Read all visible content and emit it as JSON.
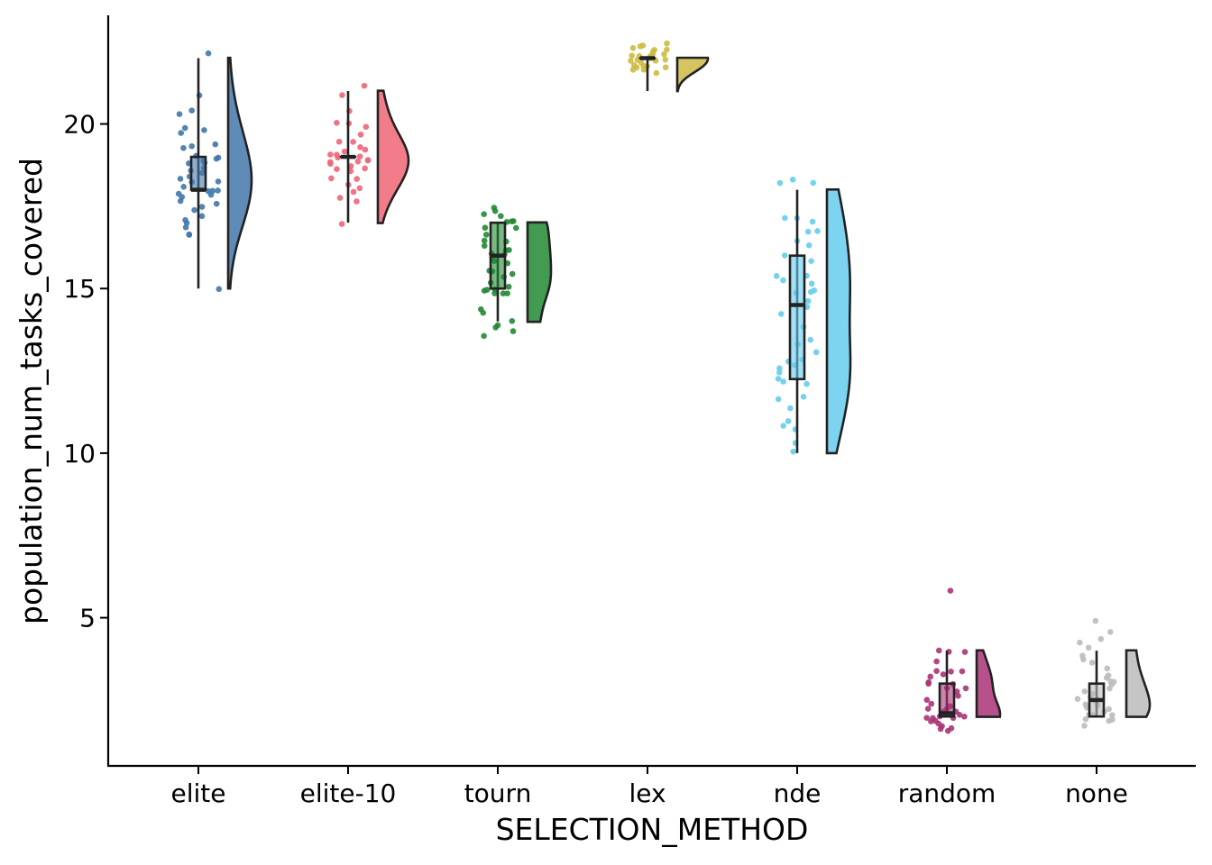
{
  "chart_data": {
    "type": "raincloud",
    "xlabel": "SELECTION_METHOD",
    "ylabel": "population_num_tasks_covered",
    "ylim": [
      0.5,
      23.3
    ],
    "yticks": [
      5,
      10,
      15,
      20
    ],
    "grid": false,
    "legend": "none",
    "groups": [
      {
        "name": "elite",
        "color": "#4477AA",
        "min": 15,
        "q1": 18,
        "median": 18,
        "q3": 19,
        "max": 22,
        "points": [
          22.1,
          20.8,
          20.4,
          20.3,
          19.9,
          19.8,
          19.7,
          19.4,
          19.3,
          19.2,
          19.1,
          19.0,
          18.9,
          18.9,
          18.8,
          18.8,
          18.7,
          18.6,
          18.5,
          18.4,
          18.3,
          18.3,
          18.2,
          18.1,
          18.0,
          18.0,
          17.9,
          17.9,
          17.8,
          17.8,
          17.7,
          17.6,
          17.5,
          17.4,
          17.2,
          17.1,
          17.0,
          16.9,
          16.7,
          16.6,
          15.0
        ]
      },
      {
        "name": "elite-10",
        "color": "#EE6677",
        "min": 17,
        "q1": 19,
        "median": 19,
        "q3": 19,
        "max": 21,
        "points": [
          21.1,
          20.9,
          20.4,
          20.1,
          20.0,
          19.9,
          19.7,
          19.5,
          19.4,
          19.3,
          19.2,
          19.1,
          19.1,
          19.0,
          19.0,
          19.0,
          18.9,
          18.9,
          18.9,
          18.8,
          18.8,
          18.7,
          18.7,
          18.6,
          18.5,
          18.4,
          18.3,
          18.1,
          18.0,
          17.9,
          17.8,
          17.7,
          16.95
        ]
      },
      {
        "name": "tourn",
        "color": "#228833",
        "min": 14,
        "q1": 15,
        "median": 16,
        "q3": 17,
        "max": 17,
        "points": [
          17.4,
          17.3,
          17.3,
          17.2,
          17.1,
          17.0,
          17.0,
          16.9,
          16.8,
          16.6,
          16.5,
          16.4,
          16.3,
          16.2,
          16.1,
          16.0,
          16.0,
          15.9,
          15.8,
          15.7,
          15.6,
          15.5,
          15.4,
          15.3,
          15.2,
          15.1,
          15.0,
          15.0,
          14.9,
          14.9,
          14.8,
          14.8,
          14.3,
          14.2,
          14.0,
          13.85,
          13.75,
          13.65,
          13.6
        ]
      },
      {
        "name": "lex",
        "color": "#CCBB44",
        "min": 21,
        "q1": 22,
        "median": 22,
        "q3": 22,
        "max": 22,
        "points": [
          22.4,
          22.35,
          22.3,
          22.3,
          22.25,
          22.2,
          22.2,
          22.15,
          22.1,
          22.1,
          22.05,
          22.0,
          22.0,
          22.0,
          21.95,
          21.9,
          21.9,
          21.85,
          21.8,
          21.8,
          21.75,
          21.7,
          21.7,
          21.65,
          21.6,
          21.6
        ]
      },
      {
        "name": "nde",
        "color": "#66CCEE",
        "min": 10,
        "q1": 12.25,
        "median": 14.5,
        "q3": 16,
        "max": 18,
        "points": [
          18.35,
          18.25,
          18.2,
          17.2,
          17.1,
          17.0,
          16.8,
          16.75,
          16.5,
          16.3,
          16.0,
          15.8,
          15.4,
          15.35,
          15.3,
          15.1,
          15.0,
          14.9,
          14.8,
          14.6,
          14.4,
          14.2,
          13.8,
          13.5,
          13.3,
          13.0,
          12.8,
          12.75,
          12.7,
          12.6,
          12.5,
          12.3,
          12.2,
          12.1,
          11.7,
          11.6,
          11.3,
          11.0,
          10.8,
          10.7,
          10.3,
          10.05
        ]
      },
      {
        "name": "random",
        "color": "#AA3377",
        "min": 2,
        "q1": 2,
        "median": 2.1,
        "q3": 3,
        "max": 4,
        "points": [
          5.8,
          4.0,
          3.9,
          3.9,
          3.7,
          3.4,
          3.35,
          3.3,
          3.3,
          3.2,
          3.1,
          3.0,
          3.0,
          2.9,
          2.8,
          2.7,
          2.6,
          2.5,
          2.4,
          2.3,
          2.3,
          2.2,
          2.2,
          2.1,
          2.1,
          2.0,
          2.0,
          2.0,
          1.95,
          1.9,
          1.9,
          1.85,
          1.8,
          1.7,
          1.7,
          1.65,
          1.6
        ]
      },
      {
        "name": "none",
        "color": "#BBBBBB",
        "min": 2,
        "q1": 2,
        "median": 2.5,
        "q3": 3,
        "max": 4,
        "points": [
          4.95,
          4.6,
          4.3,
          4.2,
          4.1,
          3.9,
          3.7,
          3.6,
          3.5,
          3.3,
          3.2,
          3.1,
          3.0,
          3.0,
          2.9,
          2.8,
          2.7,
          2.6,
          2.6,
          2.5,
          2.4,
          2.4,
          2.3,
          2.3,
          2.2,
          2.2,
          2.1,
          2.0,
          2.0,
          1.9,
          1.9,
          1.8,
          1.7
        ]
      }
    ]
  }
}
